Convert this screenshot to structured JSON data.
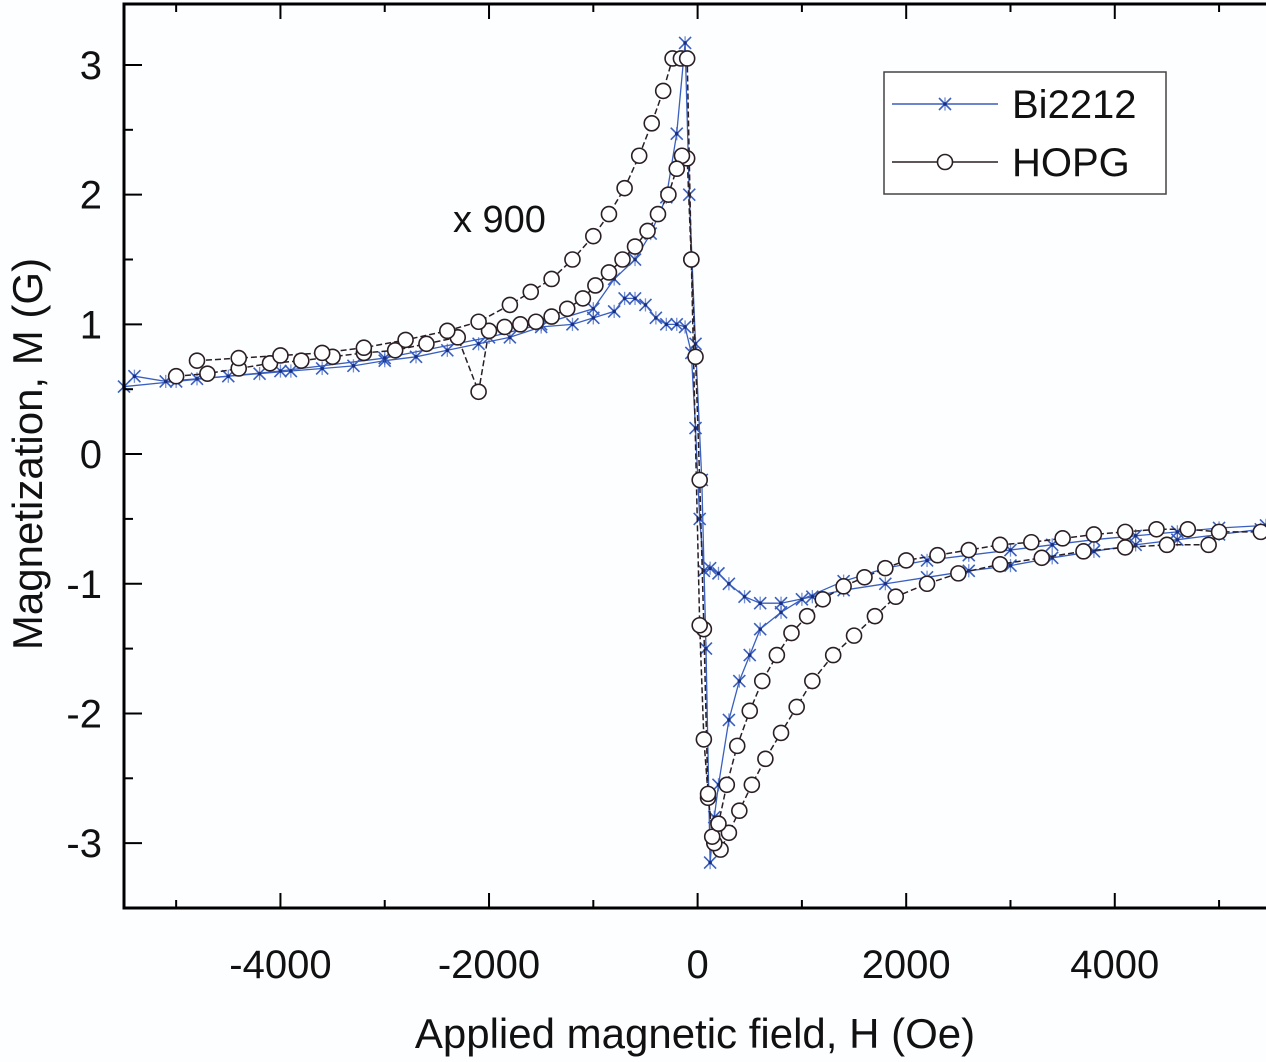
{
  "chart_data": {
    "type": "line",
    "title": "",
    "xlabel": "Applied magnetic field, H (Oe)",
    "ylabel": "Magnetization, M (G)",
    "xlim": [
      -5500,
      5450
    ],
    "ylim": [
      -3.5,
      3.47
    ],
    "xticks": [
      -4000,
      -2000,
      0,
      2000,
      4000
    ],
    "xtick_labels": [
      "-4000",
      "-2000",
      "0",
      "2000",
      "4000"
    ],
    "yticks": [
      -3,
      -2,
      -1,
      0,
      1,
      2,
      3
    ],
    "ytick_labels": [
      "-3",
      "-2",
      "-1",
      "0",
      "1",
      "2",
      "3"
    ],
    "grid": false,
    "legend": {
      "placement": "top-right",
      "entries": [
        "Bi2212",
        "HOPG"
      ]
    },
    "annotations": [
      {
        "text": "x 900",
        "x": -1900,
        "y": 1.82
      }
    ],
    "series": [
      {
        "name": "Bi2212",
        "color": "#3a5fbf",
        "marker": "asterisk",
        "branches": [
          {
            "label": "descending",
            "x": [
              5400,
              5000,
              4600,
              4200,
              3800,
              3400,
              3000,
              2600,
              2200,
              1800,
              1400,
              1100,
              800,
              600,
              450,
              300,
              200,
              120,
              60,
              20,
              -20,
              -60,
              -120,
              -200,
              -300,
              -400,
              -500,
              -600,
              -700,
              -800,
              -1000,
              -1200,
              -1500,
              -1800,
              -2100,
              -2400,
              -2700,
              -3000,
              -3300,
              -3600,
              -3900,
              -4200,
              -4500,
              -4800,
              -5100,
              -5400
            ],
            "y": [
              -0.58,
              -0.62,
              -0.66,
              -0.7,
              -0.75,
              -0.8,
              -0.86,
              -0.9,
              -0.95,
              -1.0,
              -1.05,
              -1.1,
              -1.15,
              -1.15,
              -1.1,
              -1.0,
              -0.92,
              -0.88,
              -0.9,
              -0.5,
              0.2,
              0.78,
              0.98,
              1.0,
              1.0,
              1.05,
              1.15,
              1.2,
              1.2,
              1.1,
              1.05,
              1.0,
              0.98,
              0.9,
              0.85,
              0.8,
              0.75,
              0.72,
              0.68,
              0.66,
              0.64,
              0.62,
              0.6,
              0.58,
              0.56,
              0.6
            ]
          },
          {
            "label": "ascending",
            "x": [
              -5500,
              -5000,
              -4000,
              -3000,
              -2000,
              -1500,
              -1000,
              -800,
              -600,
              -450,
              -300,
              -200,
              -120,
              -80,
              -20,
              40,
              80,
              120,
              160,
              200,
              300,
              400,
              500,
              600,
              800,
              1000,
              1400,
              1800,
              2200,
              2600,
              3000,
              3400,
              3800,
              4200,
              4600,
              5000,
              5450
            ],
            "y": [
              0.52,
              0.56,
              0.64,
              0.74,
              0.9,
              1.0,
              1.12,
              1.35,
              1.5,
              1.7,
              1.98,
              2.47,
              3.17,
              2.0,
              0.85,
              -0.2,
              -1.5,
              -3.15,
              -2.8,
              -2.55,
              -2.05,
              -1.75,
              -1.55,
              -1.35,
              -1.22,
              -1.12,
              -0.98,
              -0.88,
              -0.82,
              -0.78,
              -0.74,
              -0.7,
              -0.66,
              -0.63,
              -0.6,
              -0.57,
              -0.55
            ]
          }
        ]
      },
      {
        "name": "HOPG",
        "color": "#2a1f24",
        "marker": "open-circle",
        "branches": [
          {
            "label": "descending",
            "x": [
              4900,
              4500,
              4100,
              3700,
              3300,
              2900,
              2500,
              2200,
              1900,
              1700,
              1500,
              1300,
              1100,
              950,
              800,
              650,
              520,
              400,
              300,
              220,
              160,
              100,
              60,
              20,
              -20,
              -60,
              -100,
              -150,
              -200,
              -280,
              -380,
              -480,
              -600,
              -720,
              -850,
              -980,
              -1100,
              -1250,
              -1400,
              -1550,
              -1700,
              -1850,
              -2000,
              -2100,
              -2300,
              -2600,
              -2900,
              -3200,
              -3500,
              -3800,
              -4100,
              -4400,
              -4700,
              -5000
            ],
            "y": [
              -0.7,
              -0.7,
              -0.72,
              -0.75,
              -0.8,
              -0.85,
              -0.92,
              -1.0,
              -1.1,
              -1.25,
              -1.4,
              -1.55,
              -1.75,
              -1.95,
              -2.15,
              -2.35,
              -2.55,
              -2.75,
              -2.92,
              -3.05,
              -3.0,
              -2.65,
              -1.35,
              -0.2,
              0.75,
              1.5,
              2.28,
              2.3,
              2.2,
              2.0,
              1.85,
              1.72,
              1.6,
              1.5,
              1.4,
              1.3,
              1.2,
              1.12,
              1.06,
              1.02,
              1.0,
              0.98,
              0.95,
              0.48,
              0.9,
              0.85,
              0.8,
              0.78,
              0.75,
              0.72,
              0.7,
              0.66,
              0.62,
              0.6
            ]
          },
          {
            "label": "ascending",
            "x": [
              -4800,
              -4400,
              -4000,
              -3600,
              -3200,
              -2800,
              -2400,
              -2100,
              -1800,
              -1600,
              -1400,
              -1200,
              -1000,
              -850,
              -700,
              -560,
              -440,
              -330,
              -240,
              -160,
              -100,
              -60,
              20,
              60,
              100,
              140,
              200,
              280,
              380,
              500,
              620,
              760,
              900,
              1050,
              1200,
              1400,
              1600,
              1800,
              2000,
              2300,
              2600,
              2900,
              3200,
              3500,
              3800,
              4100,
              4400,
              4700,
              5000,
              5400
            ],
            "y": [
              0.72,
              0.74,
              0.76,
              0.78,
              0.82,
              0.88,
              0.95,
              1.02,
              1.15,
              1.25,
              1.35,
              1.5,
              1.68,
              1.85,
              2.05,
              2.3,
              2.55,
              2.8,
              3.05,
              3.05,
              3.05,
              1.5,
              -1.32,
              -2.2,
              -2.62,
              -2.95,
              -2.85,
              -2.55,
              -2.25,
              -1.98,
              -1.75,
              -1.55,
              -1.38,
              -1.25,
              -1.12,
              -1.02,
              -0.95,
              -0.88,
              -0.82,
              -0.78,
              -0.74,
              -0.7,
              -0.68,
              -0.65,
              -0.62,
              -0.6,
              -0.58,
              -0.58,
              -0.6,
              -0.6
            ]
          }
        ]
      }
    ]
  }
}
